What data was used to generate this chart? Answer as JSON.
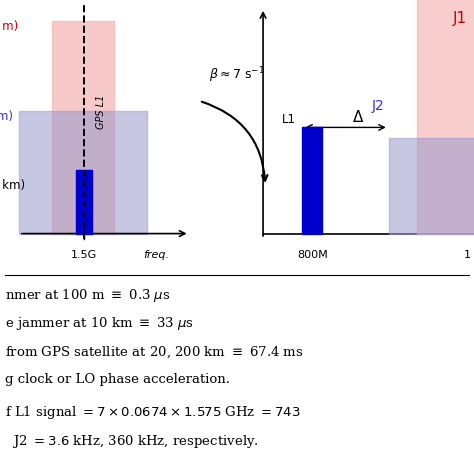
{
  "bg_color": "#ffffff",
  "fig_width": 4.74,
  "fig_height": 4.74,
  "dpi": 100,
  "colors": {
    "pink": "#f5b8b8",
    "blue_light": "#9999cc",
    "blue_dark": "#0000cc",
    "red_label": "#cc0000",
    "blue_label": "#3333cc",
    "black": "#000000"
  },
  "bottom_lines": [
    "nmer at 100 m ≡ 0.3 μs",
    "e jammer at 10 km ≡ 33 μs",
    "from GPS satellite at 20, 200 km ≡ 67.4 ms",
    "g clock or LO phase acceleration.",
    "f L1 signal = 7 × 0.0674 × 1.575 GHz = 743",
    "  J2 = 3.6 kHz, 360 kHz, respectively."
  ]
}
